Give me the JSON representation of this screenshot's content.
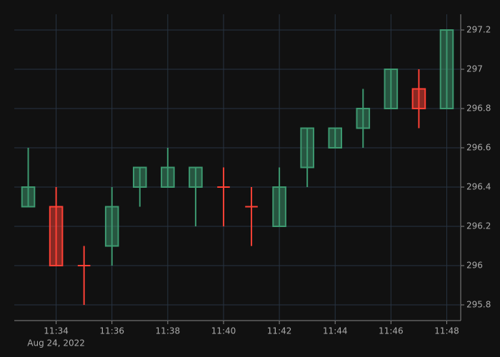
{
  "chart_data": {
    "type": "candlestick",
    "x": [
      "11:33",
      "11:34",
      "11:35",
      "11:36",
      "11:37",
      "11:38",
      "11:39",
      "11:40",
      "11:41",
      "11:42",
      "11:43",
      "11:44",
      "11:45",
      "11:46",
      "11:47",
      "11:48"
    ],
    "open": [
      296.3,
      296.3,
      296.0,
      296.1,
      296.4,
      296.4,
      296.4,
      296.4,
      296.3,
      296.2,
      296.5,
      296.6,
      296.7,
      296.8,
      296.9,
      296.8
    ],
    "high": [
      296.6,
      296.4,
      296.1,
      296.4,
      296.5,
      296.6,
      296.5,
      296.5,
      296.4,
      296.5,
      296.7,
      296.7,
      296.9,
      297.0,
      297.0,
      297.2
    ],
    "low": [
      296.3,
      296.0,
      295.8,
      296.0,
      296.3,
      296.4,
      296.2,
      296.2,
      296.1,
      296.2,
      296.4,
      296.6,
      296.6,
      296.8,
      296.7,
      296.8
    ],
    "close": [
      296.4,
      296.0,
      296.0,
      296.3,
      296.5,
      296.5,
      296.5,
      296.4,
      296.3,
      296.4,
      296.7,
      296.7,
      296.8,
      297.0,
      296.8,
      297.2
    ],
    "increasing_color": "#3d9970",
    "decreasing_color": "#ff4136",
    "xticks": [
      "11:34",
      "11:36",
      "11:38",
      "11:40",
      "11:42",
      "11:44",
      "11:46",
      "11:48"
    ],
    "x_date_label": "Aug 24, 2022",
    "ylim": [
      295.72,
      297.28
    ],
    "yticks": [
      295.8,
      296,
      296.2,
      296.4,
      296.6,
      296.8,
      297,
      297.2
    ],
    "grid": true
  }
}
